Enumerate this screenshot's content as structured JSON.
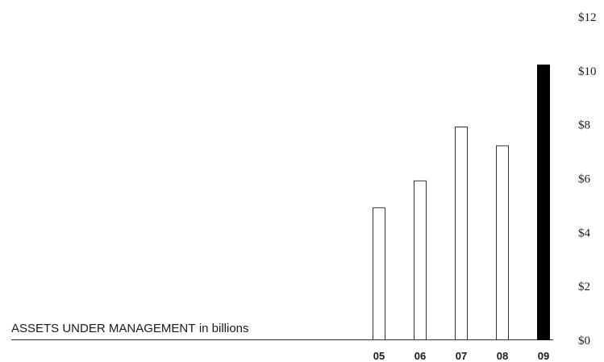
{
  "chart_data": {
    "type": "bar",
    "title_main": "ASSETS UNDER MANAGEMENT",
    "title_unit": "in billions",
    "categories": [
      "05",
      "06",
      "07",
      "08",
      "09"
    ],
    "values": [
      4.9,
      5.9,
      7.9,
      7.2,
      10.2
    ],
    "highlight_category": "09",
    "y_ticks": [
      "$0",
      "$2",
      "$4",
      "$6",
      "$8",
      "$10",
      "$12"
    ],
    "ylim": [
      0,
      12
    ],
    "grid": false,
    "colors": {
      "bar_fill": "#ffffff",
      "bar_stroke": "#333333",
      "highlight_fill": "#000000",
      "baseline": "#333333",
      "text": "#1a1a1a"
    }
  }
}
